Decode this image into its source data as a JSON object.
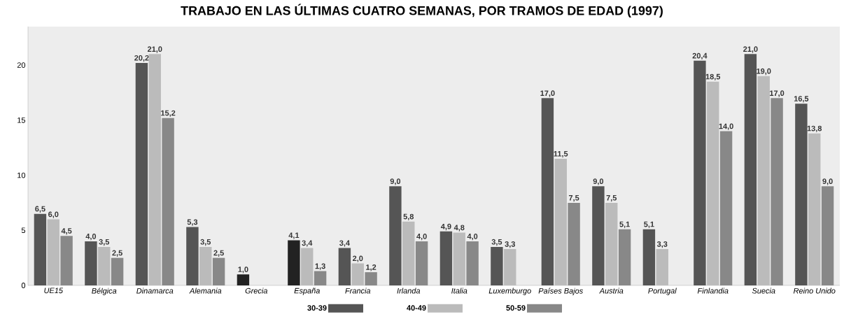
{
  "chart_data": {
    "type": "bar",
    "title": "TRABAJO EN LAS ÚLTIMAS CUATRO SEMANAS, POR TRAMOS DE EDAD (1997)",
    "categories": [
      "UE15",
      "Bélgica",
      "Dinamarca",
      "Alemania",
      "Grecia",
      "España",
      "Francia",
      "Irlanda",
      "Italia",
      "Luxemburgo",
      "Países Bajos",
      "Austria",
      "Portugal",
      "Finlandia",
      "Suecia",
      "Reino Unido"
    ],
    "series": [
      {
        "name": "30-39",
        "color": "#555555",
        "colors": [
          "#555555",
          "#555555",
          "#555555",
          "#555555",
          "#222222",
          "#222222",
          "#555555",
          "#555555",
          "#555555",
          "#555555",
          "#555555",
          "#555555",
          "#555555",
          "#555555",
          "#555555",
          "#555555"
        ],
        "values": [
          6.5,
          4.0,
          20.2,
          5.3,
          1.0,
          4.1,
          3.4,
          9.0,
          4.9,
          3.5,
          17.0,
          9.0,
          5.1,
          20.4,
          21.0,
          16.5
        ],
        "value_labels": [
          "6,5",
          "4,0",
          "20,2",
          "5,3",
          "1,0",
          "4,1",
          "3,4",
          "9,0",
          "4,9",
          "3,5",
          "17,0",
          "9,0",
          "5,1",
          "20,4",
          "21,0",
          "16,5"
        ]
      },
      {
        "name": "40-49",
        "color": "#bbbbbb",
        "values": [
          6.0,
          3.5,
          21.0,
          3.5,
          null,
          3.4,
          2.0,
          5.8,
          4.8,
          3.3,
          11.5,
          7.5,
          3.3,
          18.5,
          19.0,
          13.8
        ],
        "value_labels": [
          "6,0",
          "3,5",
          "21,0",
          "3,5",
          null,
          "3,4",
          "2,0",
          "5,8",
          "4,8",
          "3,3",
          "11,5",
          "7,5",
          "3,3",
          "18,5",
          "19,0",
          "13,8"
        ]
      },
      {
        "name": "50-59",
        "color": "#888888",
        "values": [
          4.5,
          2.5,
          15.2,
          2.5,
          null,
          1.3,
          1.2,
          4.0,
          4.0,
          null,
          7.5,
          5.1,
          null,
          14.0,
          17.0,
          9.0
        ],
        "value_labels": [
          "4,5",
          "2,5",
          "15,2",
          "2,5",
          null,
          "1,3",
          "1,2",
          "4,0",
          "4,0",
          null,
          "7,5",
          "5,1",
          null,
          "14,0",
          "17,0",
          "9,0"
        ]
      }
    ],
    "ylim": [
      0,
      23.5
    ],
    "yticks": [
      0,
      5,
      10,
      15,
      20
    ],
    "grid": false,
    "legend": "bottom"
  }
}
